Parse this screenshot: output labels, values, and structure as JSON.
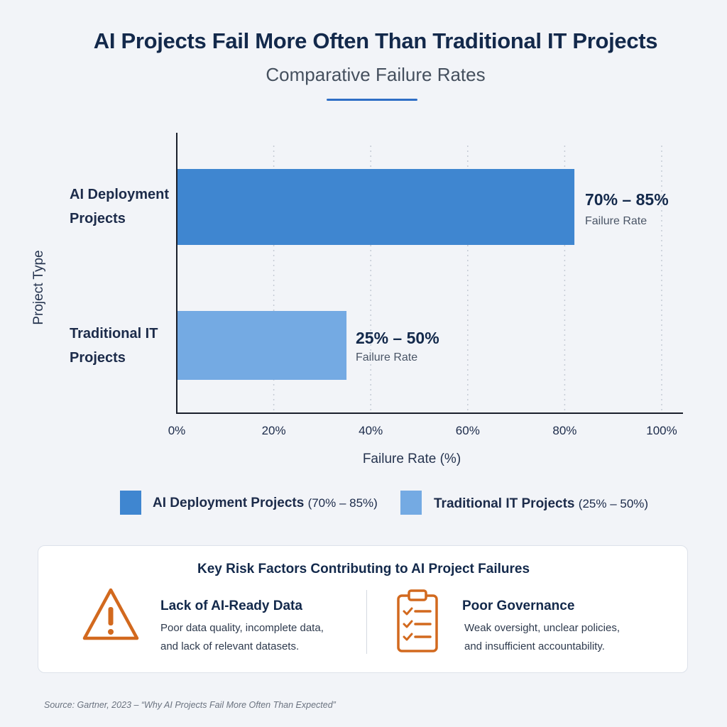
{
  "header": {
    "title": "AI Projects Fail More Often Than Traditional IT Projects",
    "subtitle": "Comparative Failure Rates"
  },
  "colors": {
    "ai_bar": "#3f86d0",
    "it_bar": "#74aae3",
    "accent": "#2f6fc6",
    "risk_icon": "#d2691e"
  },
  "chart_data": {
    "type": "bar",
    "orientation": "horizontal",
    "title": "Comparative Failure Rates",
    "xlabel": "Failure Rate (%)",
    "ylabel": "Project Type",
    "xlim": [
      0,
      100
    ],
    "xticks": [
      "0%",
      "20%",
      "40%",
      "60%",
      "80%",
      "100%"
    ],
    "xtick_values": [
      0,
      20,
      40,
      60,
      80,
      100
    ],
    "grid": "vertical dotted",
    "categories": [
      {
        "label_line1": "AI Deployment",
        "label_line2": "Projects",
        "value": 82,
        "range": "70% – 85%",
        "range_label": "Failure Rate"
      },
      {
        "label_line1": "Traditional IT",
        "label_line2": "Projects",
        "value": 35,
        "range": "25% – 50%",
        "range_label": "Failure Rate"
      }
    ],
    "legend": [
      {
        "name": "AI Deployment Projects",
        "range": "(70% – 85%)"
      },
      {
        "name": "Traditional IT Projects",
        "range": "(25% – 50%)"
      }
    ],
    "legend_position": "bottom"
  },
  "risks": {
    "title": "Key Risk Factors Contributing to AI Project Failures",
    "items": [
      {
        "icon": "warning-triangle-icon",
        "heading": "Lack of AI-Ready Data",
        "line1": "Poor data quality, incomplete data,",
        "line2": "and lack of relevant datasets."
      },
      {
        "icon": "clipboard-checklist-icon",
        "heading": "Poor Governance",
        "line1": "Weak oversight, unclear policies,",
        "line2": "and insufficient accountability."
      }
    ]
  },
  "source": "Source: Gartner, 2023 – “Why AI Projects Fail More Often Than Expected”"
}
